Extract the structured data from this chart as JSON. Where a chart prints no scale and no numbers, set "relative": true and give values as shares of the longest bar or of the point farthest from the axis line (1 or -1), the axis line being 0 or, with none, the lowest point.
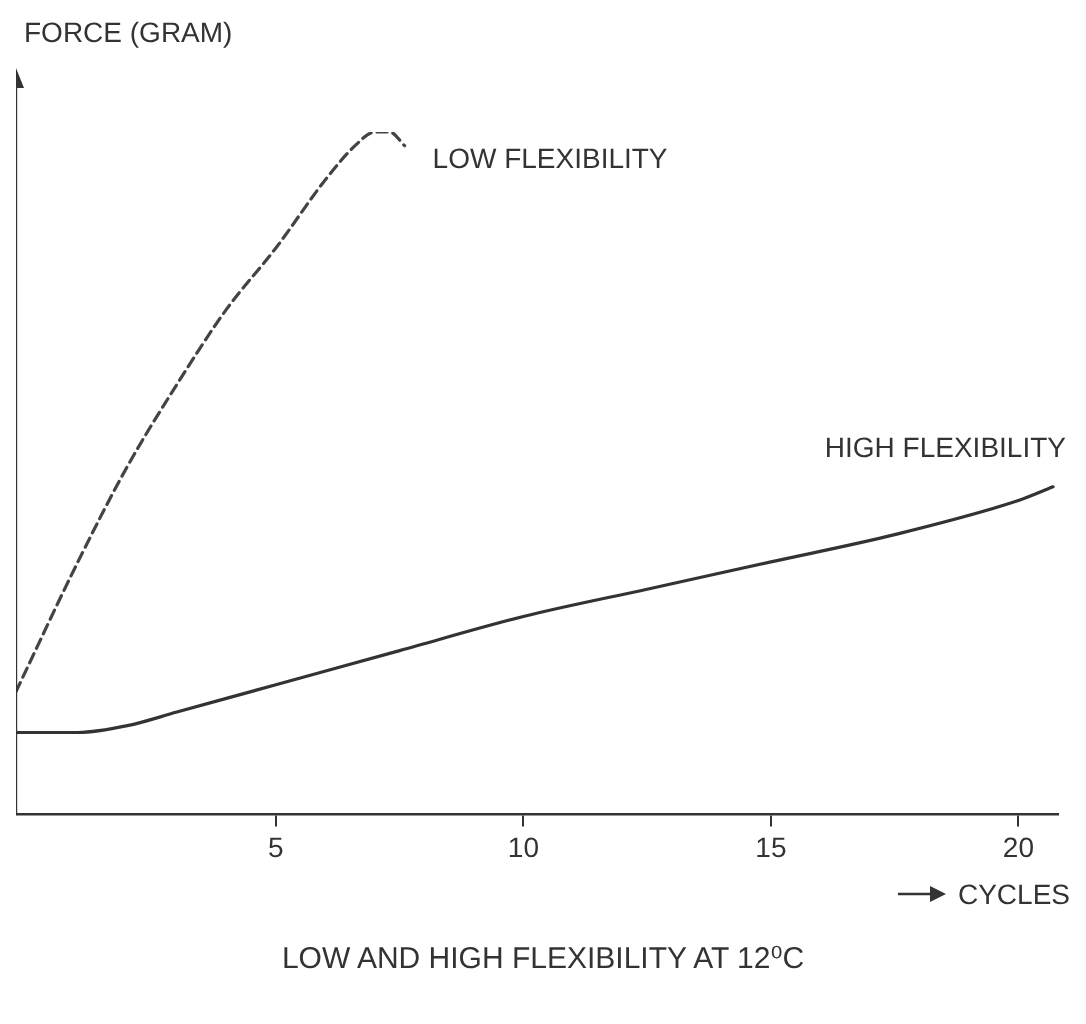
{
  "chart_data": {
    "type": "line",
    "ylabel": "FORCE (GRAM)",
    "xlabel": "CYCLES",
    "annotations": [
      "LOW AND HIGH FLEXIBILITY AT 12⁰C"
    ],
    "relative": true,
    "xlim": [
      -0.25,
      20.8
    ],
    "xticks": [
      5,
      10,
      15,
      20
    ],
    "grid": false,
    "legend": false,
    "marker": "none",
    "line_style": "solid",
    "series": [
      {
        "name": "LOW FLEXIBILITY",
        "color": "#444444",
        "line_style": "dashed",
        "x": [
          -0.25,
          1,
          2,
          3,
          4,
          5,
          6,
          6.6,
          7.0,
          7.3,
          7.6
        ],
        "values": [
          0.18,
          0.37,
          0.51,
          0.63,
          0.74,
          0.83,
          0.93,
          0.98,
          1.0,
          1.0,
          0.98
        ]
      },
      {
        "name": "HIGH FLEXIBILITY",
        "color": "#333333",
        "x": [
          -0.25,
          1,
          2,
          3,
          5,
          7.5,
          10,
          12.5,
          15,
          17.5,
          20,
          20.7
        ],
        "values": [
          0.12,
          0.12,
          0.13,
          0.15,
          0.19,
          0.24,
          0.29,
          0.33,
          0.37,
          0.41,
          0.46,
          0.48
        ]
      }
    ]
  }
}
